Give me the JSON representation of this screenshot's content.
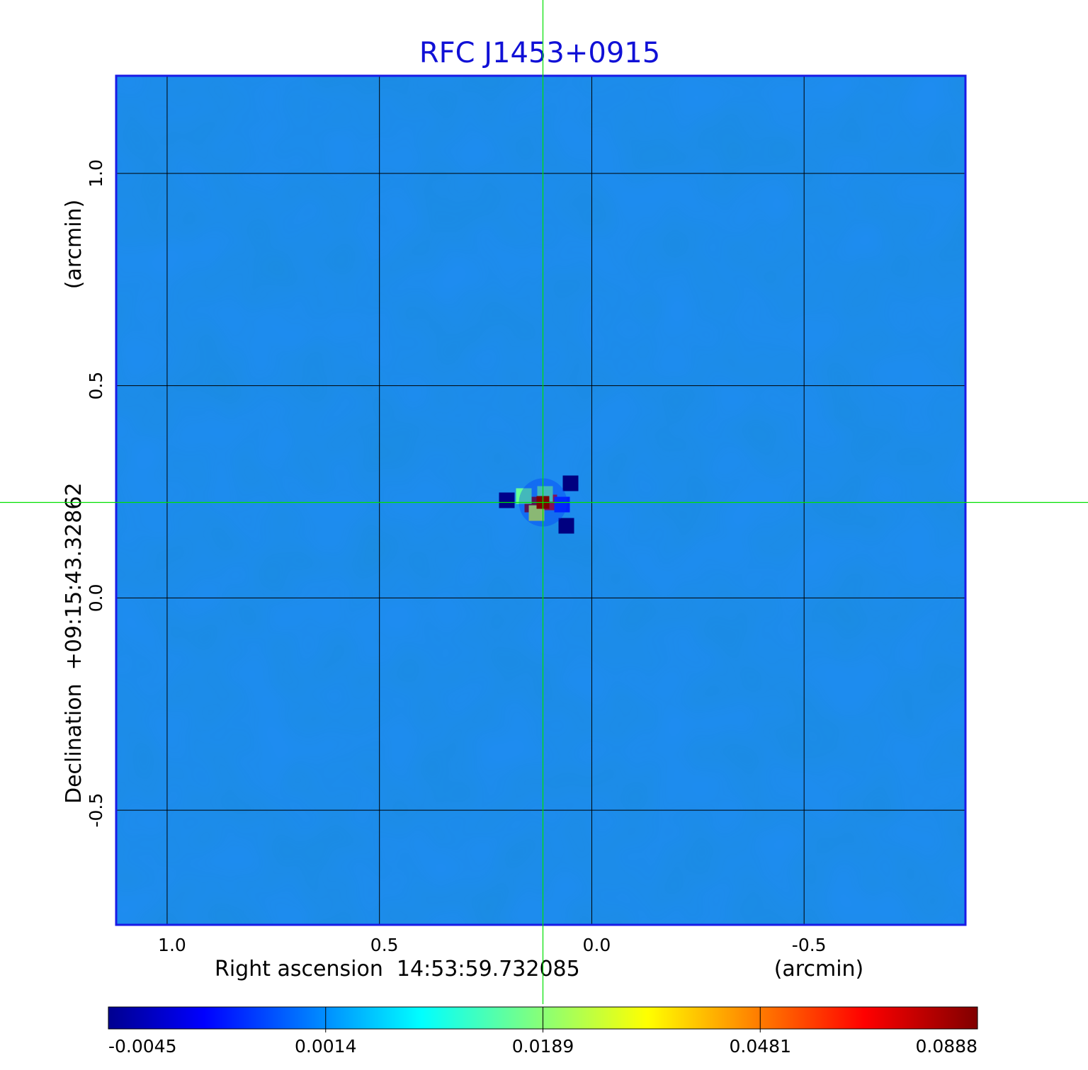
{
  "chart_data": {
    "type": "heatmap",
    "title": "RFC J1453+0915",
    "xlabel": "Right ascension  14:53:59.732085",
    "xunit": "(arcmin)",
    "ylabel": "Declination  +09:15:43.32862",
    "yunit": "(arcmin)",
    "xlim": [
      1.12,
      -0.88
    ],
    "ylim": [
      -0.77,
      1.23
    ],
    "x_ticks": [
      1.0,
      0.5,
      0.0,
      -0.5
    ],
    "x_tick_labels": [
      "1.0",
      "0.5",
      "0.0",
      "-0.5"
    ],
    "y_ticks": [
      1.0,
      0.5,
      0.0,
      -0.5
    ],
    "y_tick_labels": [
      "1.0",
      "0.5",
      "0.0",
      "-0.5"
    ],
    "grid": true,
    "crosshair": {
      "x": 0.115,
      "y": 0.225,
      "color": "#00e000"
    },
    "background_value": 0.0,
    "peak": {
      "x": 0.115,
      "y": 0.225,
      "value": 0.0888
    },
    "features": [
      {
        "x": 0.14,
        "y": 0.22,
        "value": 0.088
      },
      {
        "x": 0.1,
        "y": 0.225,
        "value": 0.082
      },
      {
        "x": 0.13,
        "y": 0.2,
        "value": 0.05
      },
      {
        "x": 0.11,
        "y": 0.245,
        "value": 0.04
      },
      {
        "x": 0.16,
        "y": 0.24,
        "value": 0.04
      },
      {
        "x": 0.07,
        "y": 0.22,
        "value": 0.01
      },
      {
        "x": 0.05,
        "y": 0.27,
        "value": -0.0045
      },
      {
        "x": 0.06,
        "y": 0.17,
        "value": -0.0045
      },
      {
        "x": 0.2,
        "y": 0.23,
        "value": -0.0035
      }
    ],
    "colorbar": {
      "colormap": "jet",
      "min": -0.0045,
      "max": 0.0888,
      "tick_labels": [
        "-0.0045",
        "0.0014",
        "0.0189",
        "0.0481",
        "0.0888"
      ],
      "colors": [
        "#00008f",
        "#0000ff",
        "#00ffff",
        "#ffff00",
        "#ff0000",
        "#800000"
      ]
    }
  }
}
